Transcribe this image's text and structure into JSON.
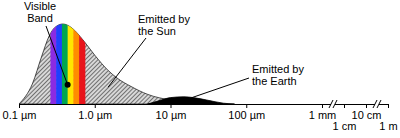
{
  "chart_data": {
    "type": "area",
    "log": "x",
    "tick_labels": "x",
    "xlim": [
      0.1,
      1000000
    ],
    "xticks": [
      {
        "value": 0.1,
        "label": "0.1 µm"
      },
      {
        "value": 1,
        "label": "1.0 µm"
      },
      {
        "value": 10,
        "label": "10 µm"
      },
      {
        "value": 100,
        "label": "100 µm"
      },
      {
        "value": 1000,
        "label": "1 mm"
      },
      {
        "value": 10000,
        "label": "1 cm"
      },
      {
        "value": 100000,
        "label": "10 cm"
      },
      {
        "value": 1000000,
        "label": "1 m"
      }
    ],
    "ylim": [
      0,
      100
    ],
    "series": [
      {
        "color": "#555555",
        "x": [
          0.1,
          0.15,
          0.2,
          0.25,
          0.3,
          0.38,
          0.5,
          0.7,
          1,
          1.5,
          2,
          3,
          5,
          10,
          20,
          40
        ],
        "values": [
          0,
          25,
          60,
          85,
          96,
          100,
          95,
          80,
          61,
          42,
          32,
          22,
          12,
          5,
          2,
          0
        ]
      },
      {
        "color": "#000000",
        "x": [
          5,
          7,
          10,
          15,
          20,
          30,
          50,
          70
        ],
        "values": [
          0,
          4,
          8,
          9,
          8,
          5,
          1,
          0
        ]
      }
    ],
    "bands": [
      {
        "range": [
          0.26,
          0.74
        ],
        "colors": [
          "#8a2be2",
          "#1e40ff",
          "#00a651",
          "#ffe600",
          "#ff8c00",
          "#e8141b"
        ]
      }
    ],
    "annotations": [
      {
        "text": [
          "Visible",
          "Band"
        ]
      },
      {
        "text": [
          "Emitted by",
          "the Sun"
        ]
      },
      {
        "text": [
          "Emitted by",
          "the Earth"
        ]
      }
    ]
  }
}
